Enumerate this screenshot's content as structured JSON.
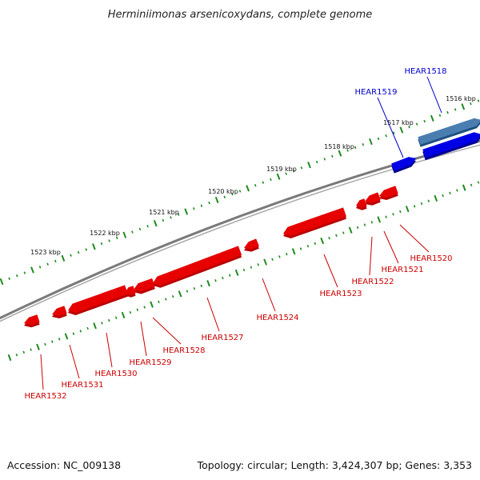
{
  "title": "Herminiimonas arsenicoxydans, complete genome",
  "footer": {
    "accession": "Accession: NC_009138",
    "summary": "Topology: circular; Length: 3,424,307 bp; Genes: 3,353"
  },
  "colors": {
    "forward_strand": "#0000e6",
    "forward_highlight": "#4a7eb0",
    "reverse_strand": "#e60000",
    "backbone": "#7a7a7a",
    "tick": "#1f8a1f",
    "forward_label": "#0000cc",
    "reverse_label": "#cc0000"
  },
  "kbp_labels": [
    "1516 kbp",
    "1517 kbp",
    "1518 kbp",
    "1519 kbp",
    "1520 kbp",
    "1521 kbp",
    "1522 kbp",
    "1523 kbp"
  ],
  "genes": [
    {
      "name": "HEAR1518",
      "strand": "forward"
    },
    {
      "name": "HEAR1519",
      "strand": "forward"
    },
    {
      "name": "HEAR1520",
      "strand": "reverse"
    },
    {
      "name": "HEAR1521",
      "strand": "reverse"
    },
    {
      "name": "HEAR1522",
      "strand": "reverse"
    },
    {
      "name": "HEAR1523",
      "strand": "reverse"
    },
    {
      "name": "HEAR1524",
      "strand": "reverse"
    },
    {
      "name": "HEAR1527",
      "strand": "reverse"
    },
    {
      "name": "HEAR1528",
      "strand": "reverse"
    },
    {
      "name": "HEAR1529",
      "strand": "reverse"
    },
    {
      "name": "HEAR1530",
      "strand": "reverse"
    },
    {
      "name": "HEAR1531",
      "strand": "reverse"
    },
    {
      "name": "HEAR1532",
      "strand": "reverse"
    }
  ]
}
